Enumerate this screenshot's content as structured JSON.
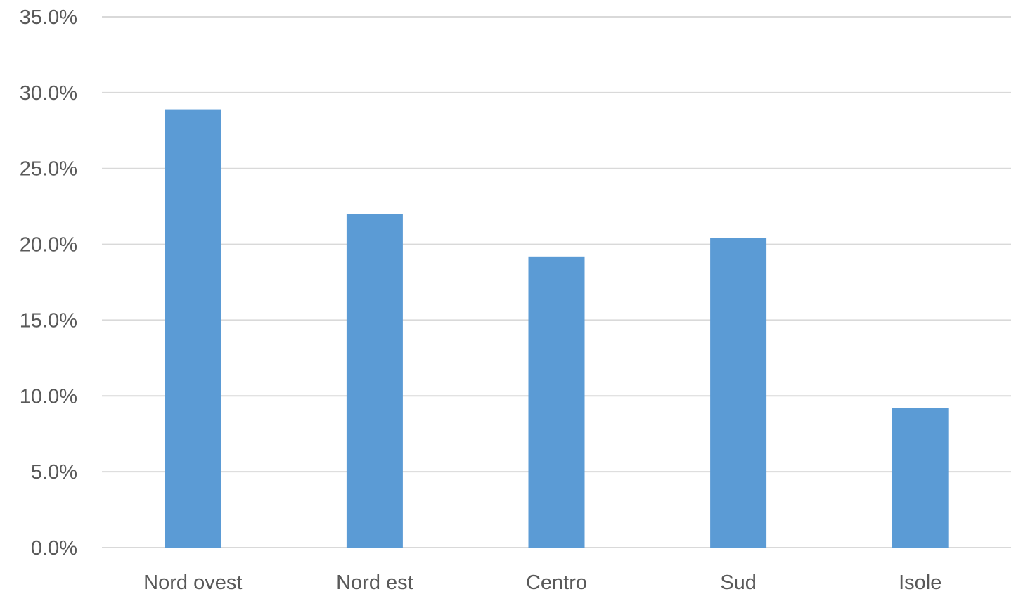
{
  "chart_data": {
    "type": "bar",
    "categories": [
      "Nord ovest",
      "Nord est",
      "Centro",
      "Sud",
      "Isole"
    ],
    "series": [
      {
        "values": [
          28.9,
          22.0,
          19.2,
          20.4,
          9.2
        ],
        "color": "#5b9bd5"
      }
    ],
    "y_ticks": [
      "0.0%",
      "5.0%",
      "10.0%",
      "15.0%",
      "20.0%",
      "25.0%",
      "30.0%",
      "35.0%"
    ],
    "ylim": [
      0,
      35
    ],
    "y_tick_step": 5,
    "grid": true,
    "legend": "none",
    "title": "",
    "xlabel": "",
    "ylabel": "",
    "colors": {
      "bar": "#5b9bd5",
      "grid": "#d9d9d9",
      "text": "#595959"
    }
  }
}
